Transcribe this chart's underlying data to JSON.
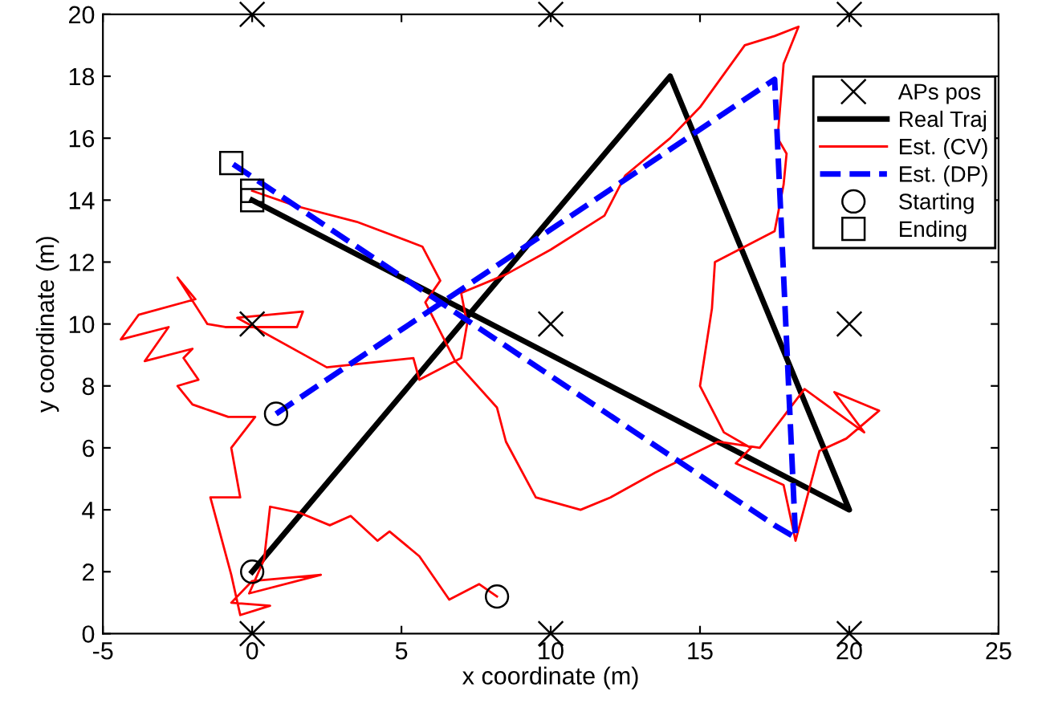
{
  "chart_data": {
    "type": "line",
    "xlabel": "x coordinate (m)",
    "ylabel": "y coordinate (m)",
    "xlim": [
      -5,
      25
    ],
    "ylim": [
      0,
      20
    ],
    "xticks": [
      -5,
      0,
      5,
      10,
      15,
      20,
      25
    ],
    "yticks": [
      0,
      2,
      4,
      6,
      8,
      10,
      12,
      14,
      16,
      18,
      20
    ],
    "grid": false,
    "legend": "top right",
    "series": [
      {
        "name": "APs pos",
        "type": "scatter",
        "marker": "cross",
        "color": "#000000",
        "x": [
          0,
          10,
          20,
          0,
          10,
          20,
          0,
          10,
          20
        ],
        "values": [
          0,
          0,
          0,
          10,
          10,
          10,
          20,
          20,
          20
        ]
      },
      {
        "name": "Real Traj",
        "marker": "none",
        "line_style": "solid",
        "color": "#000000",
        "x": [
          0,
          14,
          20,
          0
        ],
        "values": [
          2,
          18,
          4,
          14
        ]
      },
      {
        "name": "Est. (CV)",
        "marker": "none",
        "line_style": "solid",
        "color": "#ff0000",
        "x": [
          8.2,
          7.6,
          6.6,
          5.6,
          4.6,
          4.2,
          3.3,
          2.6,
          1.6,
          0.6,
          0.4,
          -0.1,
          2.3,
          0,
          -0.7,
          0.6,
          -0.4,
          -0.7,
          -1.4,
          -0.4,
          -0.7,
          0.1,
          -0.8,
          -1.4,
          -2.0,
          -2.5,
          -1.8,
          -2.3,
          -2.0,
          -3.6,
          -2.8,
          -4.4,
          -3.8,
          -1.9,
          -2.5,
          -1.5,
          -0.9,
          1.5,
          1.7,
          -0.5,
          2.5,
          5.4,
          5.6,
          7.0,
          7.2,
          7.0,
          8.5,
          10,
          11.8,
          12.5,
          14,
          15,
          16.5,
          17.5,
          18.3,
          17.8,
          17.6,
          17.9,
          17.8,
          17.5,
          15.5,
          15.4,
          15.0,
          15.8,
          16.7,
          16.2,
          17.8,
          18.2,
          19.0,
          19.9,
          21.0,
          19.5,
          20.5,
          18.5,
          17.0,
          15.6,
          13.5,
          12.0,
          11.0,
          9.5,
          8.5,
          8.2,
          6.8,
          5.8,
          6.3,
          5.7,
          3.5,
          1.5,
          0
        ],
        "values": [
          1.2,
          1.6,
          1.1,
          2.5,
          3.3,
          3.0,
          3.8,
          3.5,
          3.9,
          4.1,
          2.4,
          1.3,
          1.9,
          1.7,
          1.0,
          0.9,
          0.6,
          1.9,
          4.4,
          4.4,
          6.0,
          7.0,
          7.0,
          7.2,
          7.4,
          8.0,
          8.2,
          8.9,
          9.2,
          8.8,
          9.9,
          9.5,
          10.3,
          10.8,
          11.5,
          10.0,
          9.9,
          9.9,
          10.4,
          10.2,
          8.6,
          8.9,
          8.2,
          8.9,
          10,
          11,
          11.6,
          12.4,
          13.5,
          14.8,
          16,
          17,
          19,
          19.3,
          19.6,
          18.4,
          16,
          15.5,
          14.5,
          13,
          12,
          10.5,
          8,
          6.5,
          6.0,
          5.5,
          4.8,
          3.0,
          5.9,
          6.3,
          7.2,
          7.8,
          6.5,
          7.9,
          6.0,
          6.2,
          5.2,
          4.4,
          4.0,
          4.4,
          6.2,
          7.3,
          8.8,
          10.7,
          11.4,
          12.5,
          13.3,
          13.8,
          14.3
        ]
      },
      {
        "name": "Est. (DP)",
        "marker": "none",
        "line_style": "dashed",
        "color": "#0000ff",
        "x": [
          0.8,
          17.5,
          18.2,
          17.5,
          -0.7
        ],
        "values": [
          7.1,
          17.9,
          3.1,
          3.5,
          15.2
        ]
      },
      {
        "name": "Starting",
        "type": "scatter",
        "marker": "circle",
        "color": "#000000",
        "x": [
          0,
          0.8,
          8.2
        ],
        "values": [
          2,
          7.1,
          1.2
        ]
      },
      {
        "name": "Ending",
        "type": "scatter",
        "marker": "square",
        "color": "#000000",
        "x": [
          0,
          0,
          -0.7
        ],
        "values": [
          14,
          14.3,
          15.2
        ]
      }
    ]
  }
}
